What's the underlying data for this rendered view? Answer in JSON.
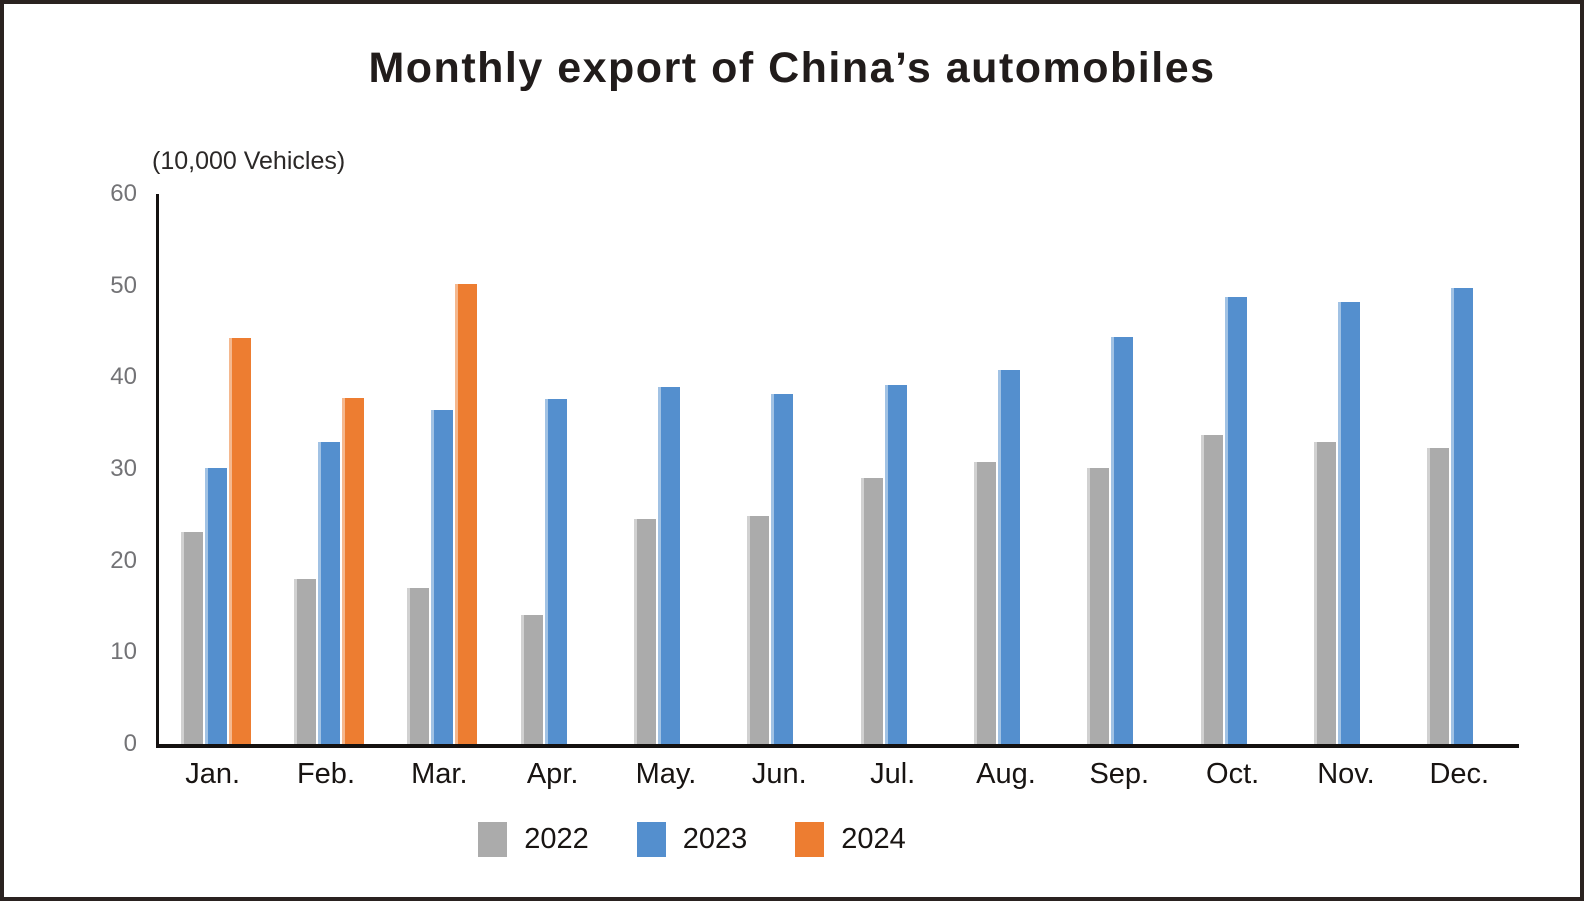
{
  "chart": {
    "title": "Monthly export of China’s automobiles",
    "unit_label": "(10,000 Vehicles)"
  },
  "chart_data": {
    "type": "bar",
    "title": "Monthly export of China’s automobiles",
    "xlabel": "",
    "ylabel": "(10,000 Vehicles)",
    "categories": [
      "Jan.",
      "Feb.",
      "Mar.",
      "Apr.",
      "May.",
      "Jun.",
      "Jul.",
      "Aug.",
      "Sep.",
      "Oct.",
      "Nov.",
      "Dec."
    ],
    "series": [
      {
        "name": "2022",
        "color": "#ababab",
        "values": [
          23.1,
          18.0,
          17.0,
          14.1,
          24.5,
          24.9,
          29.0,
          30.8,
          30.1,
          33.7,
          32.9,
          32.3
        ]
      },
      {
        "name": "2023",
        "color": "#548fce",
        "values": [
          30.1,
          32.9,
          36.4,
          37.6,
          38.9,
          38.2,
          39.2,
          40.8,
          44.4,
          48.8,
          48.2,
          49.8
        ]
      },
      {
        "name": "2024",
        "color": "#ed7d31",
        "values": [
          44.3,
          37.7,
          50.2,
          null,
          null,
          null,
          null,
          null,
          null,
          null,
          null,
          null
        ]
      }
    ],
    "ylim": [
      0,
      60
    ],
    "yticks": [
      0,
      10,
      20,
      30,
      40,
      50,
      60
    ],
    "grid": false,
    "legend_position": "bottom",
    "axis_color": "#141110",
    "tick_label_color": "#737376"
  }
}
